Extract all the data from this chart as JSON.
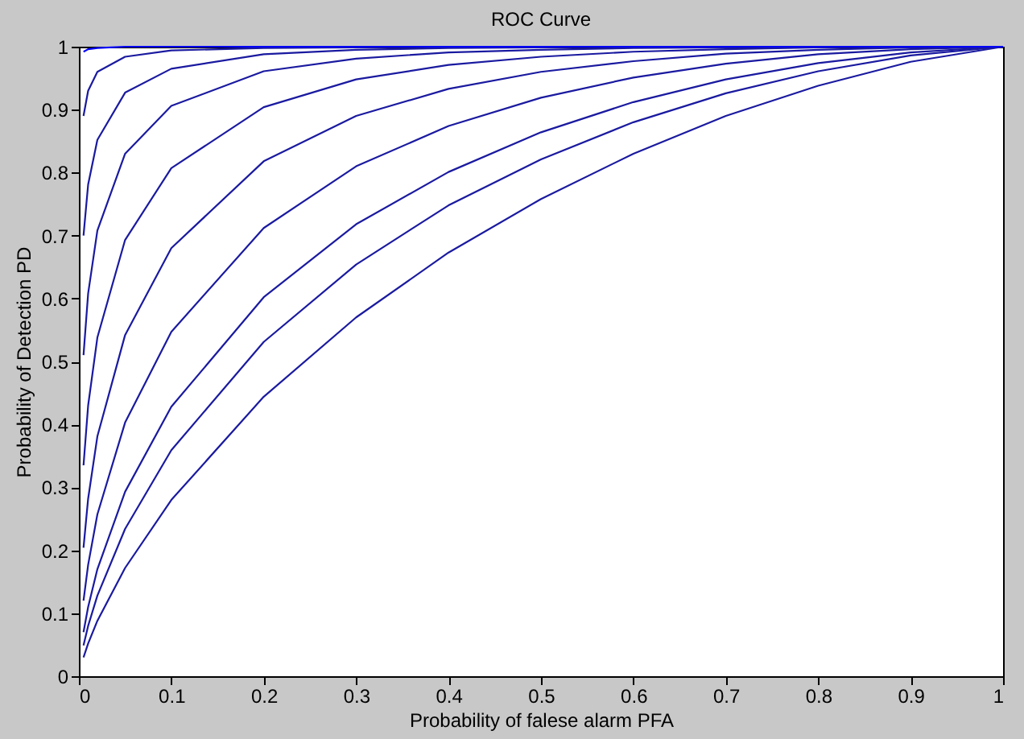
{
  "chart_data": {
    "type": "line",
    "title": "ROC Curve",
    "xlabel": "Probability of falese alarm PFA",
    "ylabel": "Probability of Detection PD",
    "x": [
      0.005,
      0.01,
      0.02,
      0.05,
      0.1,
      0.2,
      0.3,
      0.4,
      0.5,
      0.6,
      0.7,
      0.8,
      0.9,
      1
    ],
    "xlim": [
      0,
      1
    ],
    "ylim": [
      0,
      1
    ],
    "xticks": [
      0,
      0.1,
      0.2,
      0.3,
      0.4,
      0.5,
      0.6,
      0.7,
      0.8,
      0.9,
      1
    ],
    "yticks": [
      0,
      0.1,
      0.2,
      0.3,
      0.4,
      0.5,
      0.6,
      0.7,
      0.8,
      0.9,
      1
    ],
    "grid": false,
    "legend": false,
    "marker": "none",
    "line_style": "solid",
    "series": [
      {
        "color": "#1a1aa0",
        "values": [
          0.03,
          0.052,
          0.088,
          0.172,
          0.28,
          0.444,
          0.57,
          0.673,
          0.758,
          0.83,
          0.89,
          0.938,
          0.976,
          1
        ]
      },
      {
        "color": "#1a1aa0",
        "values": [
          0.049,
          0.08,
          0.128,
          0.234,
          0.359,
          0.531,
          0.654,
          0.748,
          0.821,
          0.88,
          0.926,
          0.961,
          0.986,
          1
        ]
      },
      {
        "color": "#1a1aa0",
        "values": [
          0.07,
          0.11,
          0.17,
          0.293,
          0.428,
          0.602,
          0.718,
          0.801,
          0.864,
          0.912,
          0.948,
          0.974,
          0.991,
          1
        ]
      },
      {
        "color": "#1a1aa0",
        "values": [
          0.12,
          0.177,
          0.257,
          0.403,
          0.547,
          0.712,
          0.81,
          0.874,
          0.919,
          0.951,
          0.973,
          0.988,
          0.996,
          1
        ]
      },
      {
        "color": "#1a1aa0",
        "values": [
          0.204,
          0.282,
          0.381,
          0.542,
          0.68,
          0.818,
          0.89,
          0.933,
          0.96,
          0.977,
          0.989,
          0.995,
          0.999,
          1
        ]
      },
      {
        "color": "#1a1aa0",
        "values": [
          0.335,
          0.43,
          0.538,
          0.693,
          0.807,
          0.904,
          0.948,
          0.971,
          0.984,
          0.992,
          0.996,
          0.999,
          1,
          1
        ]
      },
      {
        "color": "#1a1aa0",
        "values": [
          0.51,
          0.608,
          0.708,
          0.83,
          0.906,
          0.961,
          0.981,
          0.991,
          0.995,
          0.998,
          0.999,
          1,
          1,
          1
        ]
      },
      {
        "color": "#1a1aa0",
        "values": [
          0.7,
          0.781,
          0.852,
          0.927,
          0.965,
          0.988,
          0.995,
          0.998,
          0.999,
          1,
          1,
          1,
          1,
          1
        ]
      },
      {
        "color": "#1a1aa0",
        "values": [
          0.89,
          0.93,
          0.96,
          0.984,
          0.994,
          0.998,
          0.999,
          1,
          1,
          1,
          1,
          1,
          1,
          1
        ]
      },
      {
        "color": "#0000ff",
        "values": [
          0.992,
          0.996,
          0.998,
          1,
          1,
          1,
          1,
          1,
          1,
          1,
          1,
          1,
          1,
          1
        ]
      }
    ]
  }
}
